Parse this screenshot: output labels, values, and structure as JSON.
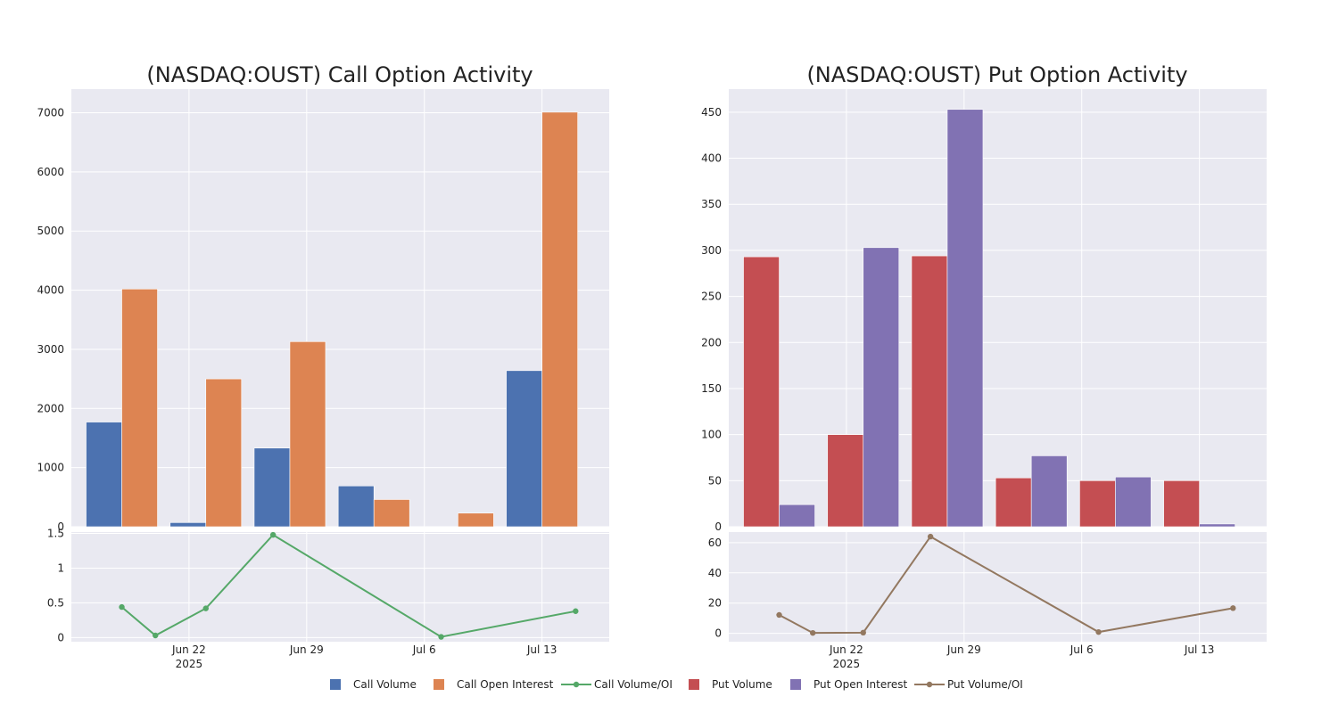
{
  "chart_data": [
    {
      "type": "bar",
      "title": "(NASDAQ:OUST) Call Option Activity",
      "x": [
        "2025-06-18",
        "2025-06-23",
        "2025-06-28",
        "2025-07-03",
        "2025-07-08",
        "2025-07-13"
      ],
      "series": [
        {
          "name": "Call Volume",
          "color": "#4c72b0",
          "values": [
            1770,
            70,
            1330,
            690,
            0,
            2640
          ]
        },
        {
          "name": "Call Open Interest",
          "color": "#dd8452",
          "values": [
            4020,
            2500,
            3130,
            460,
            230,
            7010
          ]
        }
      ],
      "ylim": [
        0,
        7400
      ],
      "yticks": [
        0,
        1000,
        2000,
        3000,
        4000,
        5000,
        6000,
        7000
      ],
      "ratio_series": {
        "name": "Call Volume/OI",
        "color": "#55a868",
        "x": [
          "2025-06-18",
          "2025-06-20",
          "2025-06-23",
          "2025-06-27",
          "2025-07-07",
          "2025-07-15"
        ],
        "values": [
          0.44,
          0.03,
          0.42,
          1.48,
          0.01,
          0.38
        ],
        "ylim": [
          -0.06,
          1.52
        ],
        "yticks": [
          0,
          0.5,
          1,
          1.5
        ],
        "ytick_labels": [
          "0",
          "0.5",
          "1",
          "1.5"
        ]
      },
      "xticks": [
        "2025-06-22",
        "2025-06-29",
        "2025-07-06",
        "2025-07-13"
      ],
      "xtick_labels": [
        "Jun 22",
        "Jun 29",
        "Jul 6",
        "Jul 13"
      ],
      "xtick_year": "2025",
      "grid": true
    },
    {
      "type": "bar",
      "title": "(NASDAQ:OUST) Put Option Activity",
      "x": [
        "2025-06-18",
        "2025-06-23",
        "2025-06-28",
        "2025-07-03",
        "2025-07-08",
        "2025-07-13"
      ],
      "series": [
        {
          "name": "Put Volume",
          "color": "#c44e52",
          "values": [
            293,
            100,
            294,
            53,
            50,
            50
          ]
        },
        {
          "name": "Put Open Interest",
          "color": "#8172b3",
          "values": [
            24,
            303,
            453,
            77,
            54,
            3
          ]
        }
      ],
      "ylim": [
        0,
        475
      ],
      "yticks": [
        0,
        50,
        100,
        150,
        200,
        250,
        300,
        350,
        400,
        450
      ],
      "ratio_series": {
        "name": "Put Volume/OI",
        "color": "#937860",
        "x": [
          "2025-06-18",
          "2025-06-20",
          "2025-06-23",
          "2025-06-27",
          "2025-07-07",
          "2025-07-15"
        ],
        "values": [
          12.2,
          0.3,
          0.5,
          64,
          0.9,
          16.7
        ],
        "ylim": [
          -5.5,
          67
        ],
        "yticks": [
          0,
          20,
          40,
          60
        ],
        "ytick_labels": [
          "0",
          "20",
          "40",
          "60"
        ]
      },
      "xticks": [
        "2025-06-22",
        "2025-06-29",
        "2025-07-06",
        "2025-07-13"
      ],
      "xtick_labels": [
        "Jun 22",
        "Jun 29",
        "Jul 6",
        "Jul 13"
      ],
      "xtick_year": "2025",
      "grid": true
    }
  ],
  "legend": {
    "placement": "bottom-center",
    "items": [
      {
        "label": "Call Volume",
        "kind": "square",
        "color": "#4c72b0"
      },
      {
        "label": "Call Open Interest",
        "kind": "square",
        "color": "#dd8452"
      },
      {
        "label": "Call Volume/OI",
        "kind": "line",
        "color": "#55a868"
      },
      {
        "label": "Put Volume",
        "kind": "square",
        "color": "#c44e52"
      },
      {
        "label": "Put Open Interest",
        "kind": "square",
        "color": "#8172b3"
      },
      {
        "label": "Put Volume/OI",
        "kind": "line",
        "color": "#937860"
      }
    ]
  }
}
